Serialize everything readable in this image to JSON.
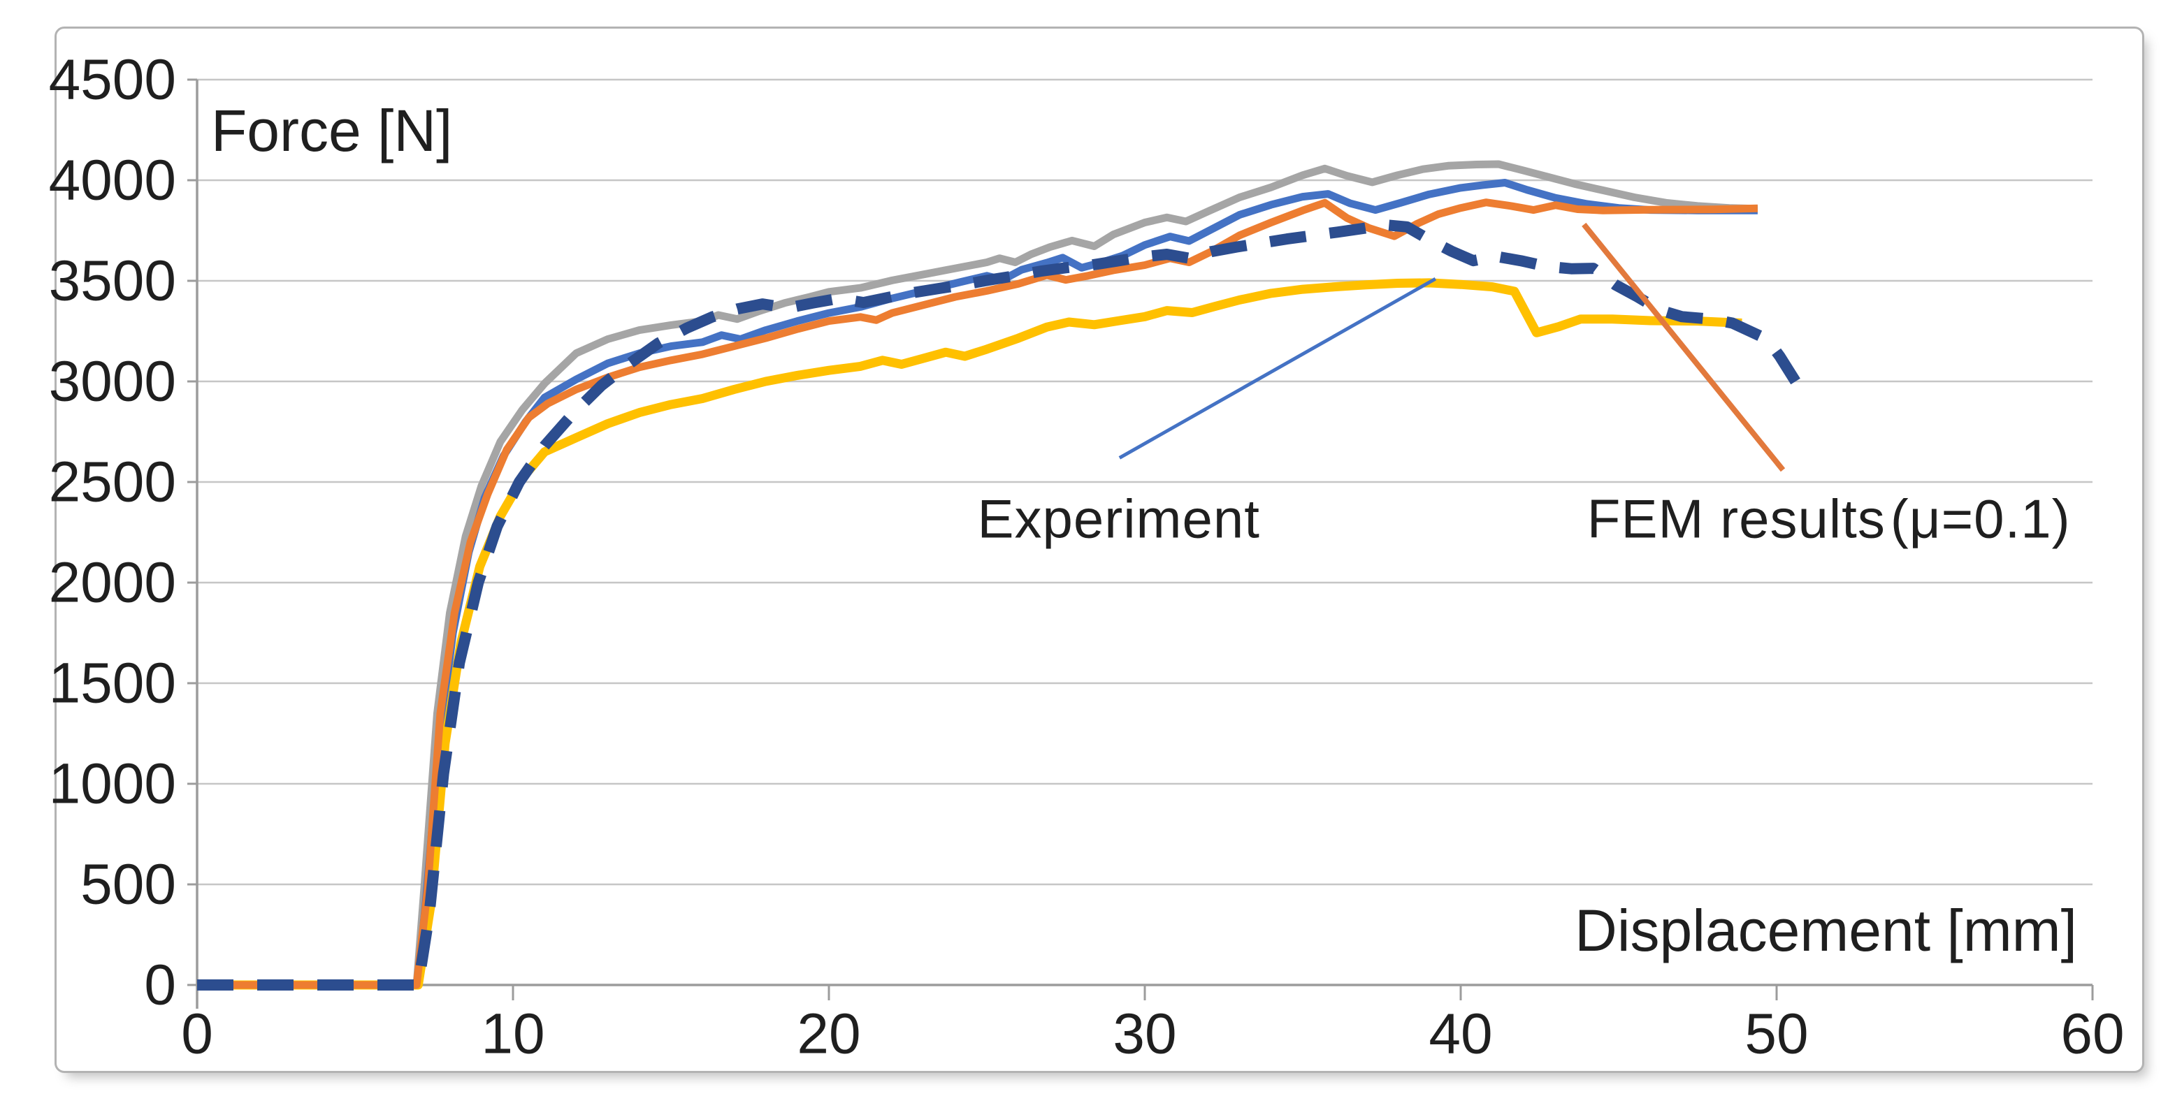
{
  "figure": {
    "background": "#ffffff",
    "frame_color": "#b3b3b3"
  },
  "chart_data": {
    "type": "line",
    "title": "",
    "xlabel": "Displacement [mm]",
    "ylabel": "Force [N]",
    "xlim": [
      0,
      60
    ],
    "ylim": [
      0,
      4500
    ],
    "x_ticks": [
      0,
      10,
      20,
      30,
      40,
      50,
      60
    ],
    "y_ticks": [
      0,
      500,
      1000,
      1500,
      2000,
      2500,
      3000,
      3500,
      4000,
      4500
    ],
    "grid": "horizontal",
    "legend_position": "none",
    "axis_color": "#9c9c9c",
    "grid_color": "#c6c6c6",
    "text_color": "#1f1f1f",
    "series": [
      {
        "name": "FEM result (gray)",
        "color": "#a5a5a5",
        "style": "solid",
        "width": 11,
        "points": [
          [
            0,
            0
          ],
          [
            6.95,
            0
          ],
          [
            7.2,
            500
          ],
          [
            7.6,
            1350
          ],
          [
            8,
            1850
          ],
          [
            8.5,
            2230
          ],
          [
            9,
            2480
          ],
          [
            9.6,
            2700
          ],
          [
            10.3,
            2860
          ],
          [
            11,
            2990
          ],
          [
            12,
            3140
          ],
          [
            13,
            3210
          ],
          [
            14,
            3255
          ],
          [
            15,
            3280
          ],
          [
            16,
            3300
          ],
          [
            16.5,
            3330
          ],
          [
            17.1,
            3310
          ],
          [
            17.8,
            3350
          ],
          [
            18.6,
            3390
          ],
          [
            19.4,
            3420
          ],
          [
            20,
            3445
          ],
          [
            21,
            3465
          ],
          [
            22,
            3502
          ],
          [
            23,
            3532
          ],
          [
            24,
            3562
          ],
          [
            25,
            3592
          ],
          [
            25.4,
            3612
          ],
          [
            25.9,
            3592
          ],
          [
            26.4,
            3632
          ],
          [
            27,
            3668
          ],
          [
            27.7,
            3700
          ],
          [
            28.4,
            3672
          ],
          [
            29,
            3730
          ],
          [
            30,
            3790
          ],
          [
            30.7,
            3815
          ],
          [
            31.3,
            3795
          ],
          [
            32,
            3845
          ],
          [
            33,
            3915
          ],
          [
            34,
            3965
          ],
          [
            35,
            4025
          ],
          [
            35.7,
            4058
          ],
          [
            36.4,
            4022
          ],
          [
            37.2,
            3990
          ],
          [
            38,
            4025
          ],
          [
            38.8,
            4055
          ],
          [
            39.6,
            4072
          ],
          [
            40.5,
            4078
          ],
          [
            41.2,
            4080
          ],
          [
            42,
            4048
          ],
          [
            42.8,
            4015
          ],
          [
            43.6,
            3982
          ],
          [
            44.5,
            3950
          ],
          [
            45.5,
            3915
          ],
          [
            46.5,
            3888
          ],
          [
            47.5,
            3872
          ],
          [
            48.5,
            3862
          ],
          [
            49.4,
            3858
          ]
        ]
      },
      {
        "name": "FEM result (blue)",
        "color": "#4472c4",
        "style": "solid",
        "width": 11,
        "points": [
          [
            0,
            0
          ],
          [
            6.98,
            0
          ],
          [
            7.25,
            430
          ],
          [
            7.7,
            1250
          ],
          [
            8.1,
            1750
          ],
          [
            8.6,
            2150
          ],
          [
            9.1,
            2420
          ],
          [
            9.7,
            2630
          ],
          [
            10.4,
            2800
          ],
          [
            11,
            2920
          ],
          [
            12,
            3010
          ],
          [
            13,
            3090
          ],
          [
            14,
            3140
          ],
          [
            15,
            3175
          ],
          [
            16,
            3195
          ],
          [
            16.6,
            3230
          ],
          [
            17.2,
            3210
          ],
          [
            18,
            3255
          ],
          [
            19,
            3300
          ],
          [
            20,
            3340
          ],
          [
            21,
            3370
          ],
          [
            21.8,
            3405
          ],
          [
            22.6,
            3435
          ],
          [
            23.4,
            3465
          ],
          [
            24.2,
            3495
          ],
          [
            25,
            3525
          ],
          [
            25.5,
            3505
          ],
          [
            26.1,
            3555
          ],
          [
            26.9,
            3590
          ],
          [
            27.4,
            3615
          ],
          [
            28,
            3565
          ],
          [
            28.6,
            3590
          ],
          [
            29.3,
            3625
          ],
          [
            30,
            3678
          ],
          [
            30.8,
            3720
          ],
          [
            31.4,
            3698
          ],
          [
            32.1,
            3755
          ],
          [
            33,
            3828
          ],
          [
            34,
            3878
          ],
          [
            35,
            3918
          ],
          [
            35.8,
            3932
          ],
          [
            36.5,
            3885
          ],
          [
            37.3,
            3852
          ],
          [
            38.1,
            3888
          ],
          [
            39,
            3930
          ],
          [
            40,
            3962
          ],
          [
            40.7,
            3976
          ],
          [
            41.4,
            3988
          ],
          [
            42.1,
            3952
          ],
          [
            43,
            3912
          ],
          [
            44,
            3882
          ],
          [
            45,
            3862
          ],
          [
            46,
            3852
          ],
          [
            47.5,
            3850
          ],
          [
            49.4,
            3850
          ]
        ]
      },
      {
        "name": "FEM result (yellow)",
        "color": "#ffc000",
        "style": "solid",
        "width": 13,
        "points": [
          [
            0,
            0
          ],
          [
            7,
            0
          ],
          [
            7.4,
            400
          ],
          [
            7.85,
            1200
          ],
          [
            8.35,
            1700
          ],
          [
            8.95,
            2080
          ],
          [
            9.6,
            2330
          ],
          [
            10.3,
            2520
          ],
          [
            11,
            2650
          ],
          [
            12,
            2720
          ],
          [
            13,
            2790
          ],
          [
            14,
            2845
          ],
          [
            15,
            2885
          ],
          [
            16,
            2915
          ],
          [
            17,
            2960
          ],
          [
            18,
            3000
          ],
          [
            19,
            3030
          ],
          [
            20,
            3055
          ],
          [
            21,
            3075
          ],
          [
            21.7,
            3105
          ],
          [
            22.3,
            3085
          ],
          [
            23,
            3115
          ],
          [
            23.7,
            3145
          ],
          [
            24.3,
            3125
          ],
          [
            25,
            3160
          ],
          [
            26,
            3215
          ],
          [
            26.9,
            3270
          ],
          [
            27.6,
            3295
          ],
          [
            28.4,
            3282
          ],
          [
            29.2,
            3302
          ],
          [
            30,
            3322
          ],
          [
            30.7,
            3352
          ],
          [
            31.5,
            3342
          ],
          [
            32.2,
            3372
          ],
          [
            33,
            3405
          ],
          [
            34,
            3438
          ],
          [
            35,
            3458
          ],
          [
            36,
            3470
          ],
          [
            37,
            3480
          ],
          [
            38,
            3488
          ],
          [
            39,
            3490
          ],
          [
            40,
            3482
          ],
          [
            41,
            3470
          ],
          [
            41.7,
            3448
          ],
          [
            42.4,
            3242
          ],
          [
            43.1,
            3272
          ],
          [
            43.8,
            3310
          ],
          [
            44.8,
            3310
          ],
          [
            46,
            3302
          ],
          [
            47.5,
            3300
          ],
          [
            48.9,
            3290
          ]
        ]
      },
      {
        "name": "FEM result (orange)",
        "color": "#ed7d31",
        "style": "solid",
        "width": 11,
        "points": [
          [
            0,
            0
          ],
          [
            6.95,
            0
          ],
          [
            7.3,
            480
          ],
          [
            7.7,
            1350
          ],
          [
            8.15,
            1850
          ],
          [
            8.65,
            2200
          ],
          [
            9.2,
            2440
          ],
          [
            9.8,
            2660
          ],
          [
            10.5,
            2820
          ],
          [
            11.1,
            2890
          ],
          [
            12,
            2960
          ],
          [
            13,
            3020
          ],
          [
            14,
            3070
          ],
          [
            15,
            3105
          ],
          [
            16,
            3135
          ],
          [
            17,
            3175
          ],
          [
            18,
            3215
          ],
          [
            19,
            3260
          ],
          [
            20,
            3300
          ],
          [
            21,
            3320
          ],
          [
            21.5,
            3305
          ],
          [
            22,
            3340
          ],
          [
            23,
            3380
          ],
          [
            24,
            3420
          ],
          [
            25,
            3450
          ],
          [
            26,
            3485
          ],
          [
            26.9,
            3528
          ],
          [
            27.5,
            3505
          ],
          [
            28.2,
            3525
          ],
          [
            29,
            3552
          ],
          [
            30,
            3578
          ],
          [
            30.8,
            3612
          ],
          [
            31.4,
            3592
          ],
          [
            32.1,
            3645
          ],
          [
            33,
            3726
          ],
          [
            34,
            3790
          ],
          [
            35,
            3850
          ],
          [
            35.7,
            3888
          ],
          [
            36.4,
            3812
          ],
          [
            37.1,
            3762
          ],
          [
            37.9,
            3722
          ],
          [
            38.6,
            3782
          ],
          [
            39.3,
            3832
          ],
          [
            40,
            3862
          ],
          [
            40.8,
            3890
          ],
          [
            41.6,
            3872
          ],
          [
            42.3,
            3852
          ],
          [
            43,
            3876
          ],
          [
            43.7,
            3856
          ],
          [
            44.5,
            3850
          ],
          [
            46,
            3853
          ],
          [
            48,
            3855
          ],
          [
            49.4,
            3860
          ]
        ]
      },
      {
        "name": "Experiment",
        "color": "#2c4d8f",
        "style": "dashed",
        "width": 16,
        "dash": [
          52,
          34
        ],
        "points": [
          [
            0,
            0
          ],
          [
            7,
            0
          ],
          [
            7.35,
            350
          ],
          [
            7.8,
            1050
          ],
          [
            8.3,
            1600
          ],
          [
            8.9,
            2000
          ],
          [
            9.5,
            2280
          ],
          [
            10.2,
            2500
          ],
          [
            11,
            2680
          ],
          [
            11.9,
            2840
          ],
          [
            12.8,
            2980
          ],
          [
            13.7,
            3090
          ],
          [
            14.6,
            3190
          ],
          [
            15.5,
            3265
          ],
          [
            16.3,
            3320
          ],
          [
            17.1,
            3360
          ],
          [
            17.9,
            3385
          ],
          [
            18.7,
            3365
          ],
          [
            19.5,
            3390
          ],
          [
            20.3,
            3412
          ],
          [
            21.1,
            3392
          ],
          [
            21.9,
            3418
          ],
          [
            22.7,
            3442
          ],
          [
            23.5,
            3462
          ],
          [
            24.3,
            3482
          ],
          [
            25.1,
            3505
          ],
          [
            25.9,
            3525
          ],
          [
            26.7,
            3548
          ],
          [
            27.5,
            3565
          ],
          [
            28.3,
            3578
          ],
          [
            29.1,
            3598
          ],
          [
            29.9,
            3618
          ],
          [
            30.7,
            3632
          ],
          [
            31.4,
            3612
          ],
          [
            32.1,
            3645
          ],
          [
            32.9,
            3668
          ],
          [
            33.7,
            3688
          ],
          [
            34.5,
            3708
          ],
          [
            35.3,
            3725
          ],
          [
            36.1,
            3742
          ],
          [
            36.9,
            3760
          ],
          [
            37.6,
            3778
          ],
          [
            38.3,
            3768
          ],
          [
            39,
            3705
          ],
          [
            39.7,
            3648
          ],
          [
            40.4,
            3600
          ],
          [
            41.1,
            3622
          ],
          [
            41.9,
            3600
          ],
          [
            42.7,
            3572
          ],
          [
            43.5,
            3560
          ],
          [
            44.2,
            3562
          ],
          [
            44.9,
            3480
          ],
          [
            45.6,
            3420
          ],
          [
            46.3,
            3355
          ],
          [
            47,
            3322
          ],
          [
            47.9,
            3310
          ],
          [
            48.6,
            3290
          ],
          [
            49.7,
            3210
          ],
          [
            50.1,
            3125
          ],
          [
            50.6,
            3000
          ]
        ]
      }
    ],
    "annotations": {
      "experiment_label": {
        "text": "Experiment",
        "x_mm": 24.7,
        "y_n": 2310
      },
      "fem_label": {
        "text": "FEM results",
        "x_mm": 44.0,
        "y_n": 2310
      },
      "mu_label": {
        "text": "(μ=0.1)",
        "x_mm": 53.6,
        "y_n": 2310
      },
      "arrows": [
        {
          "name": "experiment-arrow",
          "color": "#4472c4",
          "width": 5,
          "from": [
            29.2,
            2620
          ],
          "to": [
            39.2,
            3510
          ],
          "head_len": 68,
          "head_halfwidth": 24
        },
        {
          "name": "fem-results-arrow",
          "color": "#e2793c",
          "width": 8,
          "from": [
            50.2,
            2560
          ],
          "to": [
            43.9,
            3780
          ],
          "head_len": 85,
          "head_halfwidth": 30
        }
      ]
    }
  }
}
